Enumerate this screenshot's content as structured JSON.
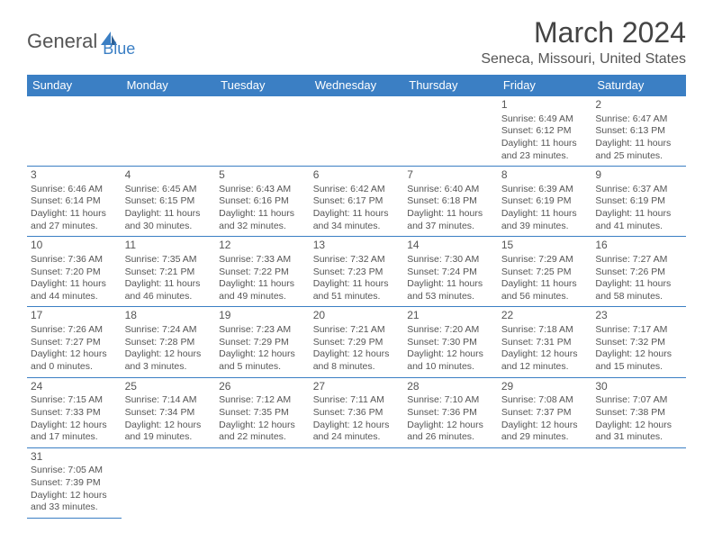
{
  "logo": {
    "general": "General",
    "blue": "Blue"
  },
  "title": {
    "month": "March 2024",
    "location": "Seneca, Missouri, United States"
  },
  "colors": {
    "header_bg": "#3b7fc4",
    "header_text": "#ffffff",
    "border": "#3b7fc4",
    "body_text": "#555555",
    "logo_gray": "#555555",
    "logo_blue": "#3b7fc4",
    "background": "#ffffff"
  },
  "day_names": [
    "Sunday",
    "Monday",
    "Tuesday",
    "Wednesday",
    "Thursday",
    "Friday",
    "Saturday"
  ],
  "calendar": {
    "first_weekday": 5,
    "num_days": 31,
    "days": {
      "1": {
        "sunrise": "6:49 AM",
        "sunset": "6:12 PM",
        "daylight": "11 hours and 23 minutes."
      },
      "2": {
        "sunrise": "6:47 AM",
        "sunset": "6:13 PM",
        "daylight": "11 hours and 25 minutes."
      },
      "3": {
        "sunrise": "6:46 AM",
        "sunset": "6:14 PM",
        "daylight": "11 hours and 27 minutes."
      },
      "4": {
        "sunrise": "6:45 AM",
        "sunset": "6:15 PM",
        "daylight": "11 hours and 30 minutes."
      },
      "5": {
        "sunrise": "6:43 AM",
        "sunset": "6:16 PM",
        "daylight": "11 hours and 32 minutes."
      },
      "6": {
        "sunrise": "6:42 AM",
        "sunset": "6:17 PM",
        "daylight": "11 hours and 34 minutes."
      },
      "7": {
        "sunrise": "6:40 AM",
        "sunset": "6:18 PM",
        "daylight": "11 hours and 37 minutes."
      },
      "8": {
        "sunrise": "6:39 AM",
        "sunset": "6:19 PM",
        "daylight": "11 hours and 39 minutes."
      },
      "9": {
        "sunrise": "6:37 AM",
        "sunset": "6:19 PM",
        "daylight": "11 hours and 41 minutes."
      },
      "10": {
        "sunrise": "7:36 AM",
        "sunset": "7:20 PM",
        "daylight": "11 hours and 44 minutes."
      },
      "11": {
        "sunrise": "7:35 AM",
        "sunset": "7:21 PM",
        "daylight": "11 hours and 46 minutes."
      },
      "12": {
        "sunrise": "7:33 AM",
        "sunset": "7:22 PM",
        "daylight": "11 hours and 49 minutes."
      },
      "13": {
        "sunrise": "7:32 AM",
        "sunset": "7:23 PM",
        "daylight": "11 hours and 51 minutes."
      },
      "14": {
        "sunrise": "7:30 AM",
        "sunset": "7:24 PM",
        "daylight": "11 hours and 53 minutes."
      },
      "15": {
        "sunrise": "7:29 AM",
        "sunset": "7:25 PM",
        "daylight": "11 hours and 56 minutes."
      },
      "16": {
        "sunrise": "7:27 AM",
        "sunset": "7:26 PM",
        "daylight": "11 hours and 58 minutes."
      },
      "17": {
        "sunrise": "7:26 AM",
        "sunset": "7:27 PM",
        "daylight": "12 hours and 0 minutes."
      },
      "18": {
        "sunrise": "7:24 AM",
        "sunset": "7:28 PM",
        "daylight": "12 hours and 3 minutes."
      },
      "19": {
        "sunrise": "7:23 AM",
        "sunset": "7:29 PM",
        "daylight": "12 hours and 5 minutes."
      },
      "20": {
        "sunrise": "7:21 AM",
        "sunset": "7:29 PM",
        "daylight": "12 hours and 8 minutes."
      },
      "21": {
        "sunrise": "7:20 AM",
        "sunset": "7:30 PM",
        "daylight": "12 hours and 10 minutes."
      },
      "22": {
        "sunrise": "7:18 AM",
        "sunset": "7:31 PM",
        "daylight": "12 hours and 12 minutes."
      },
      "23": {
        "sunrise": "7:17 AM",
        "sunset": "7:32 PM",
        "daylight": "12 hours and 15 minutes."
      },
      "24": {
        "sunrise": "7:15 AM",
        "sunset": "7:33 PM",
        "daylight": "12 hours and 17 minutes."
      },
      "25": {
        "sunrise": "7:14 AM",
        "sunset": "7:34 PM",
        "daylight": "12 hours and 19 minutes."
      },
      "26": {
        "sunrise": "7:12 AM",
        "sunset": "7:35 PM",
        "daylight": "12 hours and 22 minutes."
      },
      "27": {
        "sunrise": "7:11 AM",
        "sunset": "7:36 PM",
        "daylight": "12 hours and 24 minutes."
      },
      "28": {
        "sunrise": "7:10 AM",
        "sunset": "7:36 PM",
        "daylight": "12 hours and 26 minutes."
      },
      "29": {
        "sunrise": "7:08 AM",
        "sunset": "7:37 PM",
        "daylight": "12 hours and 29 minutes."
      },
      "30": {
        "sunrise": "7:07 AM",
        "sunset": "7:38 PM",
        "daylight": "12 hours and 31 minutes."
      },
      "31": {
        "sunrise": "7:05 AM",
        "sunset": "7:39 PM",
        "daylight": "12 hours and 33 minutes."
      }
    }
  },
  "labels": {
    "sunrise": "Sunrise:",
    "sunset": "Sunset:",
    "daylight": "Daylight:"
  }
}
